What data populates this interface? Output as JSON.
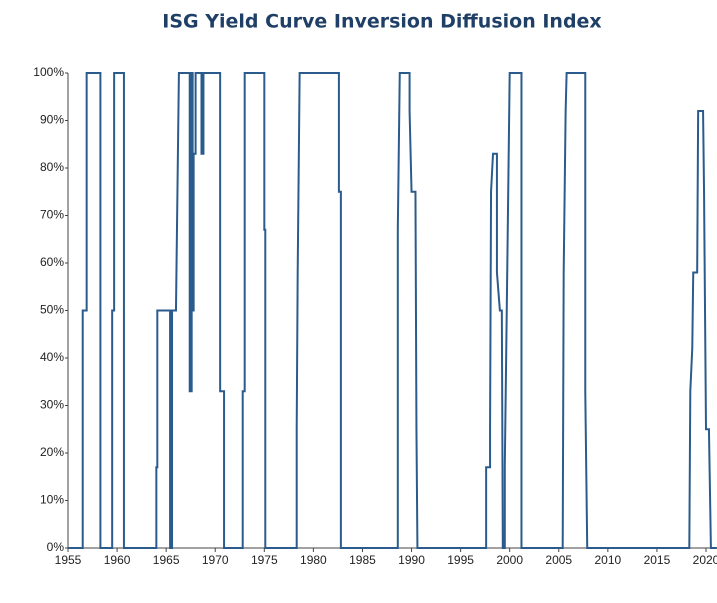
{
  "chart_data": {
    "type": "line",
    "title": "ISG Yield Curve Inversion Diffusion Index",
    "xlim": [
      1955,
      2021.1
    ],
    "xticks": [
      1955,
      1960,
      1965,
      1970,
      1975,
      1980,
      1985,
      1990,
      1995,
      2000,
      2005,
      2010,
      2015,
      2020
    ],
    "ylim": [
      0,
      100
    ],
    "yticks": [
      {
        "value": 0,
        "label": "0%"
      },
      {
        "value": 10,
        "label": "10%"
      },
      {
        "value": 20,
        "label": "20%"
      },
      {
        "value": 30,
        "label": "30%"
      },
      {
        "value": 40,
        "label": "40%"
      },
      {
        "value": 50,
        "label": "50%"
      },
      {
        "value": 60,
        "label": "60%"
      },
      {
        "value": 70,
        "label": "70%"
      },
      {
        "value": 80,
        "label": "80%"
      },
      {
        "value": 90,
        "label": "90%"
      },
      {
        "value": 100,
        "label": "100%"
      }
    ],
    "grid": false,
    "color": "#2b5b8c",
    "x": [
      1955,
      1956.5,
      1956.5,
      1956.9,
      1956.9,
      1958.3,
      1958.3,
      1959.5,
      1959.5,
      1959.7,
      1959.7,
      1960.7,
      1960.7,
      1964.0,
      1964.0,
      1964.1,
      1964.1,
      1965.4,
      1965.4,
      1965.6,
      1965.6,
      1966.0,
      1966.3,
      1967.4,
      1967.4,
      1967.6,
      1967.6,
      1967.7,
      1967.7,
      1967.8,
      1967.8,
      1968.0,
      1968.0,
      1968.6,
      1968.6,
      1968.8,
      1968.8,
      1970.5,
      1970.5,
      1970.9,
      1970.9,
      1972.8,
      1972.8,
      1973.0,
      1973.0,
      1975.0,
      1975.0,
      1975.1,
      1975.1,
      1978.3,
      1978.3,
      1978.4,
      1978.6,
      1982.6,
      1982.6,
      1982.8,
      1982.8,
      1988.6,
      1988.6,
      1988.8,
      1989.8,
      1989.8,
      1990.0,
      1990.4,
      1990.5,
      1990.6,
      1997.6,
      1997.6,
      1998.0,
      1998.0,
      1998.1,
      1998.3,
      1998.7,
      1998.7,
      1999.0,
      1999.2,
      1999.3,
      1999.5,
      1999.5,
      1999.7,
      2000.0,
      2001.2,
      2001.2,
      2005.4,
      2005.5,
      2005.7,
      2005.8,
      2007.7,
      2007.7,
      2007.9,
      2018.3,
      2018.4,
      2018.6,
      2018.7,
      2019.1,
      2019.2,
      2019.7,
      2019.8,
      2020.0,
      2020.3,
      2020.5,
      2021.1
    ],
    "values": [
      0,
      0,
      50,
      50,
      100,
      100,
      0,
      0,
      50,
      50,
      100,
      100,
      0,
      0,
      17,
      17,
      50,
      50,
      0,
      0,
      50,
      50,
      100,
      100,
      33,
      33,
      100,
      100,
      50,
      50,
      83,
      83,
      100,
      100,
      83,
      83,
      100,
      100,
      33,
      33,
      0,
      0,
      33,
      33,
      100,
      100,
      67,
      67,
      0,
      0,
      25,
      58,
      100,
      100,
      75,
      75,
      0,
      0,
      67,
      100,
      100,
      92,
      75,
      75,
      25,
      0,
      0,
      17,
      17,
      25,
      75,
      83,
      83,
      58,
      50,
      50,
      0,
      0,
      17,
      50,
      100,
      100,
      0,
      0,
      58,
      92,
      100,
      100,
      33,
      0,
      0,
      33,
      42,
      58,
      58,
      92,
      92,
      75,
      25,
      25,
      0,
      0
    ]
  }
}
